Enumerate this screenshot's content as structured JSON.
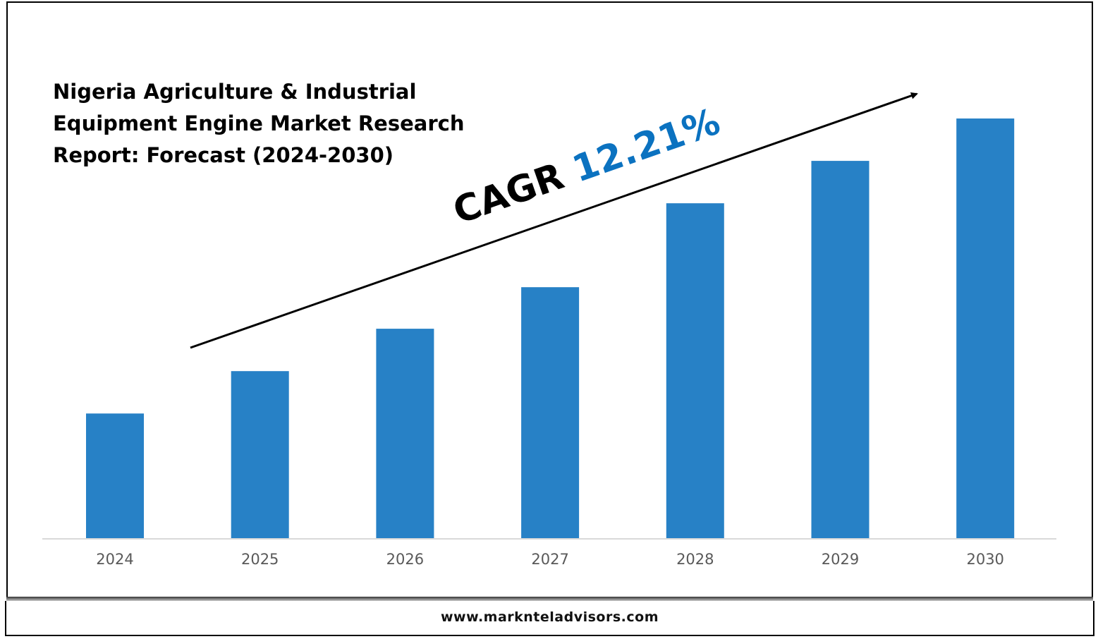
{
  "chart_data": {
    "type": "bar",
    "title": [
      "Nigeria Agriculture & Industrial",
      "Equipment Engine Market Research",
      "Report: Forecast (2024-2030)"
    ],
    "categories": [
      "2024",
      "2025",
      "2026",
      "2027",
      "2028",
      "2029",
      "2030"
    ],
    "values": [
      29.7,
      39.8,
      49.9,
      59.8,
      79.8,
      89.9,
      100
    ],
    "value_note": "relative scale (2030 = 100); no y-axis shown",
    "xlabel": "",
    "ylabel": "",
    "ylim": [
      0,
      100
    ],
    "grid": false,
    "bar_color": "#2781c6",
    "annotation": {
      "label": "CAGR",
      "value": "12.21%",
      "value_color": "#0b72c0"
    }
  },
  "footer": {
    "url": "www.marknteladvisors.com"
  }
}
